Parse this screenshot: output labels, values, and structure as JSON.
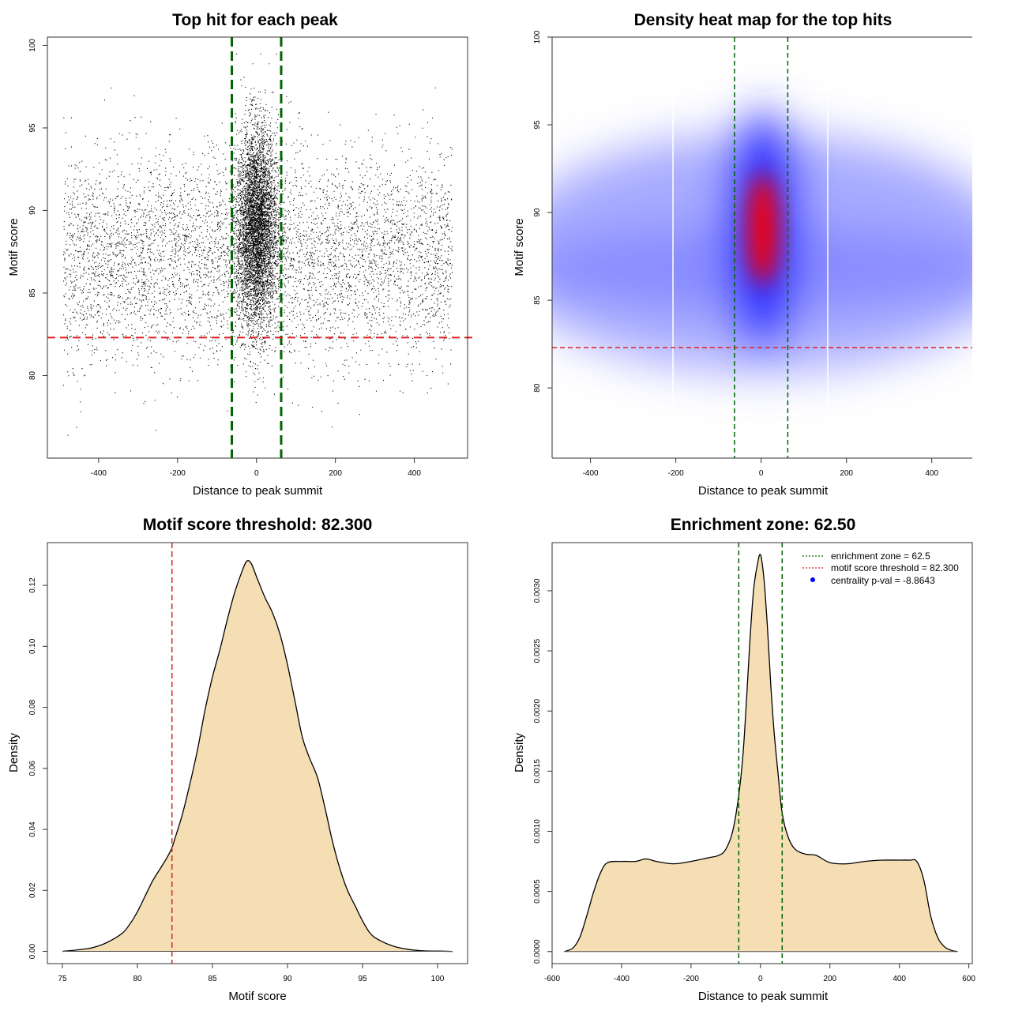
{
  "chart_data": [
    {
      "type": "scatter",
      "title": "Top hit for each peak",
      "xlabel": "Distance to peak summit",
      "ylabel": "Motif score",
      "xlim": [
        -530,
        535
      ],
      "ylim": [
        75,
        100.5
      ],
      "xticks": [
        -400,
        -200,
        0,
        200,
        400
      ],
      "yticks": [
        80,
        85,
        90,
        95,
        100
      ],
      "xtick_labels": [
        "-400",
        "-200",
        "0",
        "200",
        "400"
      ],
      "ytick_labels": [
        "80",
        "85",
        "90",
        "95",
        "100"
      ],
      "vlines": [
        -62.5,
        62.5
      ],
      "hline": 82.3,
      "point_count_approx": 30000,
      "x_range_of_points": [
        -490,
        495
      ],
      "background_score_mean": 87.2,
      "central_cluster_score_mean": 89,
      "colors": {
        "points": "#000000",
        "enrichment_lines": "#006400",
        "threshold_line": "#dd2222"
      }
    },
    {
      "type": "heatmap",
      "title": "Density heat map for the top hits",
      "xlabel": "Distance to peak summit",
      "ylabel": "Motif score",
      "xlim": [
        -490,
        495
      ],
      "ylim": [
        76,
        100
      ],
      "xticks": [
        -400,
        -200,
        0,
        200,
        400
      ],
      "yticks": [
        80,
        85,
        90,
        95,
        100
      ],
      "xtick_labels": [
        "-400",
        "-200",
        "0",
        "200",
        "400"
      ],
      "ytick_labels": [
        "80",
        "85",
        "90",
        "95",
        "100"
      ],
      "vlines": [
        -62.5,
        62.5
      ],
      "hline": 82.3,
      "peak_location": {
        "x": 0,
        "y": 89
      },
      "colors": {
        "low": "#ffffff",
        "mid": "#0000ff",
        "high": "#ff0000",
        "enrichment_lines": "#006400",
        "threshold_line": "#dd2222"
      }
    },
    {
      "type": "area",
      "title": "Motif score threshold: 82.300",
      "xlabel": "Motif score",
      "ylabel": "Density",
      "xlim": [
        74,
        102
      ],
      "ylim": [
        -0.004,
        0.134
      ],
      "xticks": [
        75,
        80,
        85,
        90,
        95,
        100
      ],
      "yticks": [
        0,
        0.02,
        0.04,
        0.06,
        0.08,
        0.1,
        0.12
      ],
      "xtick_labels": [
        "75",
        "80",
        "85",
        "90",
        "95",
        "100"
      ],
      "ytick_labels": [
        "0.00",
        "0.02",
        "0.04",
        "0.06",
        "0.08",
        "0.10",
        "0.12"
      ],
      "vline": 82.3,
      "x": [
        75,
        76,
        77,
        78,
        79,
        79.5,
        80,
        80.5,
        81,
        81.5,
        82,
        82.3,
        82.5,
        83,
        83.5,
        84,
        84.5,
        85,
        85.5,
        86,
        86.5,
        87,
        87.3,
        87.6,
        88,
        88.5,
        89,
        89.5,
        90,
        90.5,
        91,
        91.5,
        92,
        92.5,
        93,
        93.5,
        94,
        94.5,
        95,
        95.5,
        96,
        97,
        98,
        99,
        100,
        101
      ],
      "values": [
        0.0,
        0.0005,
        0.0012,
        0.003,
        0.006,
        0.009,
        0.013,
        0.018,
        0.023,
        0.027,
        0.031,
        0.034,
        0.037,
        0.045,
        0.055,
        0.066,
        0.079,
        0.09,
        0.099,
        0.109,
        0.118,
        0.125,
        0.128,
        0.127,
        0.122,
        0.116,
        0.111,
        0.104,
        0.094,
        0.082,
        0.07,
        0.063,
        0.057,
        0.047,
        0.036,
        0.027,
        0.02,
        0.015,
        0.01,
        0.006,
        0.004,
        0.0018,
        0.0007,
        0.0002,
        0.0001,
        0.0
      ],
      "colors": {
        "fill": "#f5deb3",
        "line": "#000000",
        "threshold_line": "#dd2222"
      }
    },
    {
      "type": "area",
      "title": "Enrichment zone: 62.50",
      "xlabel": "Distance to peak summit",
      "ylabel": "Density",
      "xlim": [
        -600,
        610
      ],
      "ylim": [
        -0.0001,
        0.0034
      ],
      "xticks": [
        -600,
        -400,
        -200,
        0,
        200,
        400,
        600
      ],
      "yticks": [
        0,
        0.0005,
        0.001,
        0.0015,
        0.002,
        0.0025,
        0.003
      ],
      "xtick_labels": [
        "-600",
        "-400",
        "-200",
        "0",
        "200",
        "400",
        "600"
      ],
      "ytick_labels": [
        "0.0000",
        "0.0005",
        "0.0010",
        "0.0015",
        "0.0020",
        "0.0025",
        "0.0030"
      ],
      "vlines": [
        -62.5,
        62.5
      ],
      "x": [
        -565,
        -540,
        -520,
        -500,
        -480,
        -460,
        -440,
        -400,
        -360,
        -330,
        -300,
        -250,
        -200,
        -150,
        -120,
        -100,
        -80,
        -62.5,
        -50,
        -40,
        -30,
        -20,
        -10,
        0,
        10,
        20,
        30,
        40,
        50,
        62.5,
        80,
        100,
        130,
        160,
        200,
        250,
        300,
        350,
        400,
        430,
        450,
        470,
        490,
        510,
        530,
        550,
        568
      ],
      "values": [
        0.0,
        3e-05,
        0.00012,
        0.0003,
        0.0005,
        0.00066,
        0.00074,
        0.00075,
        0.00075,
        0.00077,
        0.00075,
        0.00073,
        0.00075,
        0.00078,
        0.0008,
        0.00085,
        0.001,
        0.0013,
        0.00165,
        0.0021,
        0.0026,
        0.003,
        0.0032,
        0.0033,
        0.0031,
        0.0027,
        0.0022,
        0.0018,
        0.0015,
        0.00115,
        0.00095,
        0.00085,
        0.00081,
        0.0008,
        0.00074,
        0.00073,
        0.00075,
        0.00076,
        0.00076,
        0.00076,
        0.00075,
        0.0006,
        0.0003,
        0.00012,
        4e-05,
        1e-05,
        0.0
      ],
      "legend": [
        {
          "label": "enrichment zone = 62.5",
          "style": "dotted-line",
          "color": "#006400"
        },
        {
          "label": "motif score threshold = 82.300",
          "style": "dotted-line",
          "color": "#dd2222"
        },
        {
          "label": "centrality p-val = -8.8643",
          "style": "point",
          "color": "#0000ff"
        }
      ],
      "legend_position": "top-right",
      "colors": {
        "fill": "#f5deb3",
        "line": "#000000",
        "enrichment_lines": "#006400"
      }
    }
  ]
}
